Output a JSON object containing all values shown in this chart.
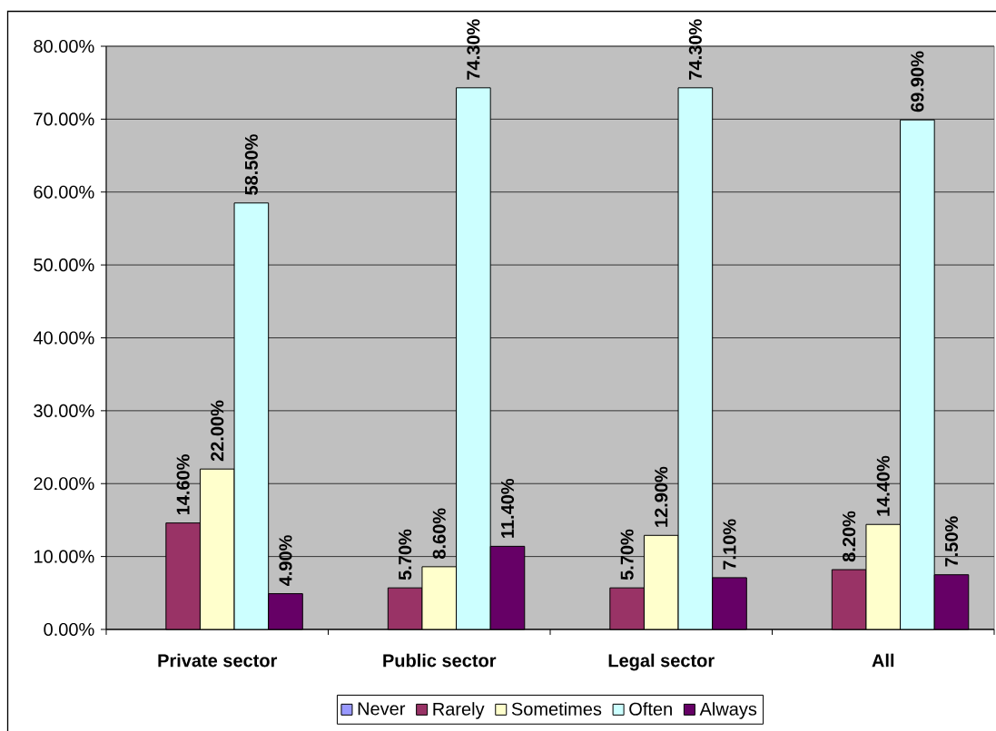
{
  "chart_data": {
    "type": "bar",
    "categories": [
      "Private sector",
      "Public sector",
      "Legal sector",
      "All"
    ],
    "series": [
      {
        "name": "Never",
        "color": "#9999ff",
        "values": [
          null,
          null,
          null,
          null
        ]
      },
      {
        "name": "Rarely",
        "color": "#993366",
        "values": [
          14.6,
          5.7,
          5.7,
          8.2
        ],
        "value_labels": [
          "14.60%",
          "5.70%",
          "5.70%",
          "8.20%"
        ]
      },
      {
        "name": "Sometimes",
        "color": "#ffffcc",
        "values": [
          22.0,
          8.6,
          12.9,
          14.4
        ],
        "value_labels": [
          "22.00%",
          "8.60%",
          "12.90%",
          "14.40%"
        ]
      },
      {
        "name": "Often",
        "color": "#ccffff",
        "values": [
          58.5,
          74.3,
          74.3,
          69.9
        ],
        "value_labels": [
          "58.50%",
          "74.30%",
          "74.30%",
          "69.90%"
        ]
      },
      {
        "name": "Always",
        "color": "#660066",
        "values": [
          4.9,
          11.4,
          7.1,
          7.5
        ],
        "value_labels": [
          "4.90%",
          "11.40%",
          "7.10%",
          "7.50%"
        ]
      }
    ],
    "ylim": [
      0,
      80
    ],
    "yticks": [
      {
        "value": 0,
        "label": "0.00%"
      },
      {
        "value": 10,
        "label": "10.00%"
      },
      {
        "value": 20,
        "label": "20.00%"
      },
      {
        "value": 30,
        "label": "30.00%"
      },
      {
        "value": 40,
        "label": "40.00%"
      },
      {
        "value": 50,
        "label": "50.00%"
      },
      {
        "value": 60,
        "label": "60.00%"
      },
      {
        "value": 70,
        "label": "70.00%"
      },
      {
        "value": 80,
        "label": "80.00%"
      }
    ],
    "grid": "y",
    "legend": "bottom"
  }
}
